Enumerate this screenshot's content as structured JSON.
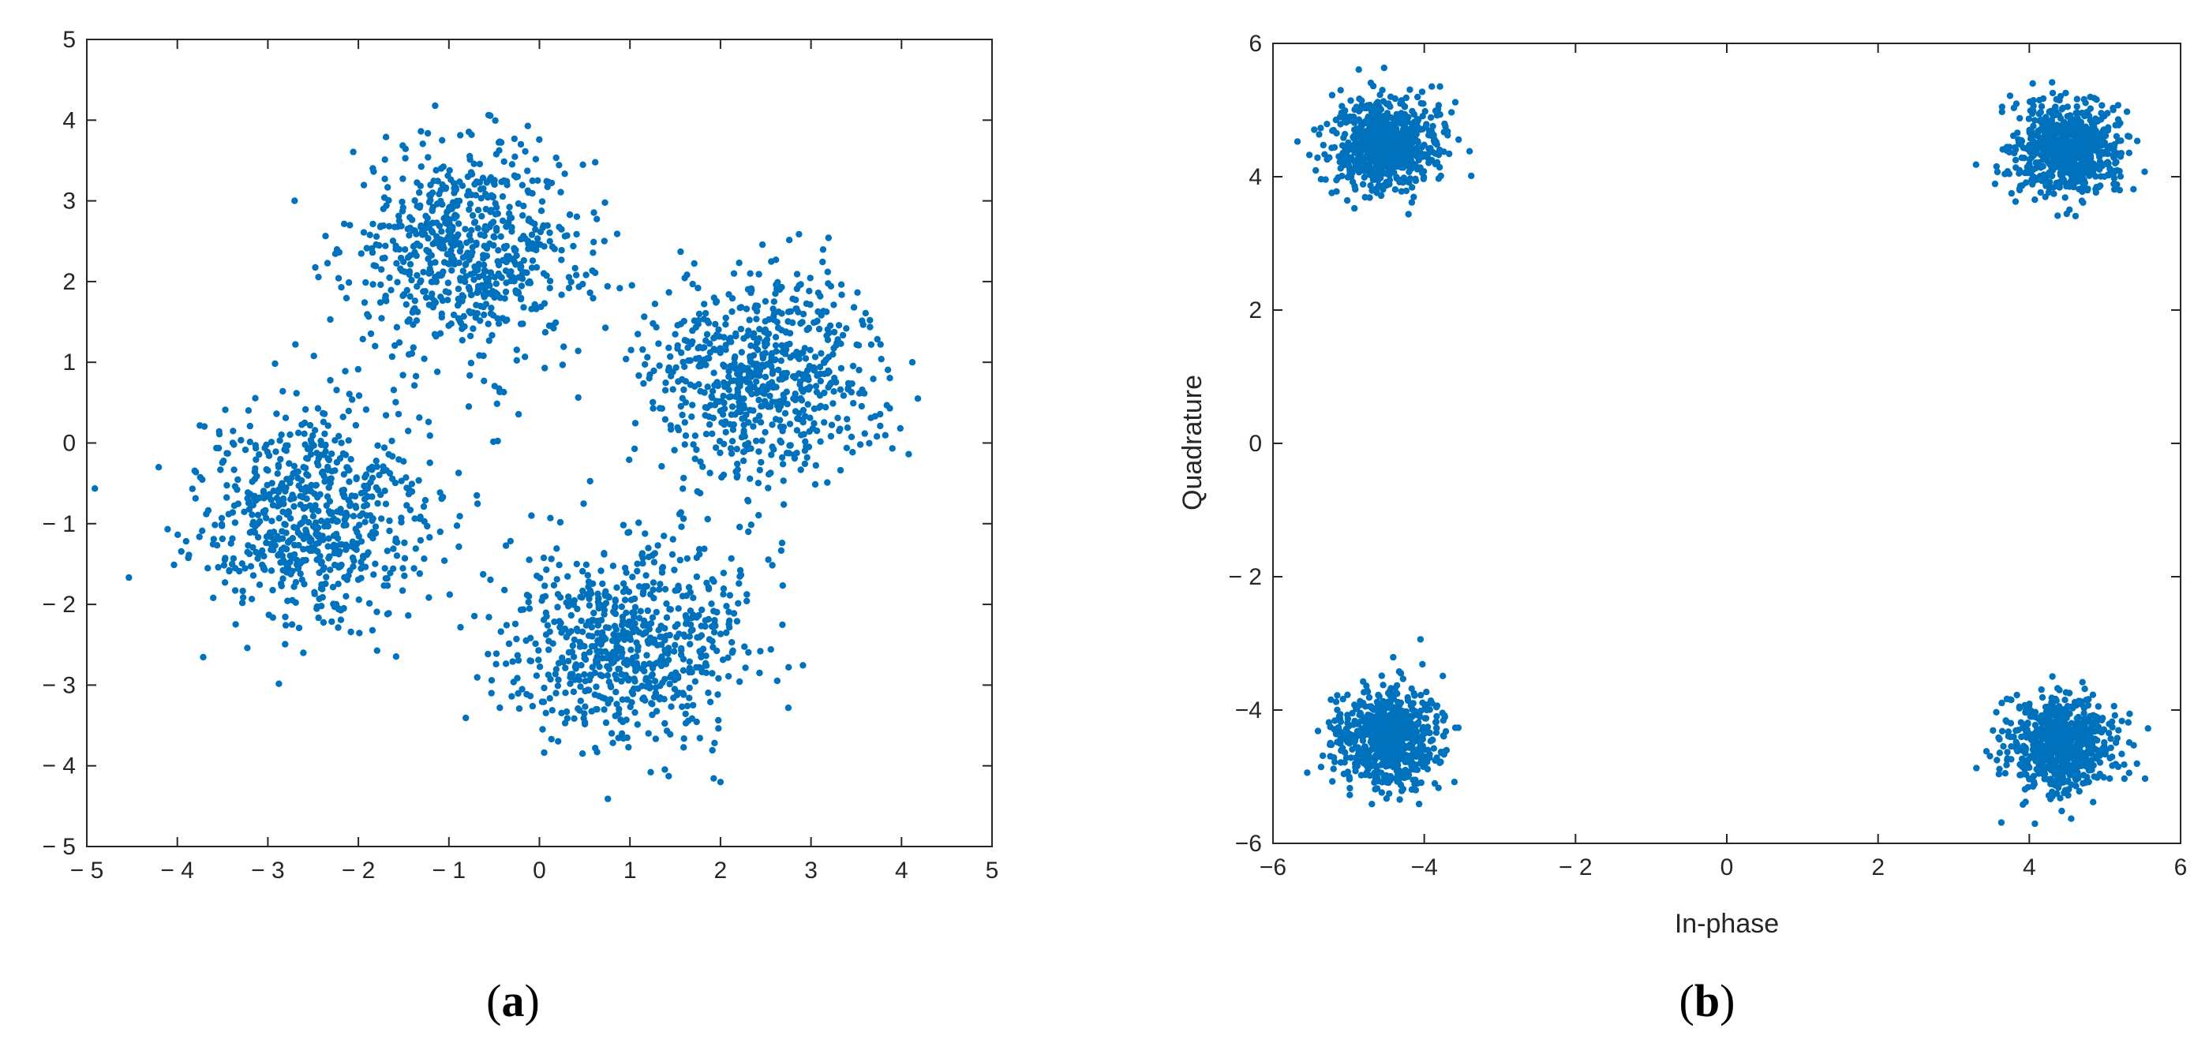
{
  "chart_data": [
    {
      "type": "scatter",
      "panel_label": {
        "open": "(",
        "letter": "a",
        "close": ")"
      },
      "title": "",
      "xlabel": "",
      "ylabel": "",
      "xlim": [
        -5,
        5
      ],
      "ylim": [
        -5,
        5
      ],
      "xticks": [
        -5,
        -4,
        -3,
        -2,
        -1,
        0,
        1,
        2,
        3,
        4,
        5
      ],
      "yticks": [
        -5,
        -4,
        -3,
        -2,
        -1,
        0,
        1,
        2,
        3,
        4,
        5
      ],
      "xtick_labels": [
        "− 5",
        "− 4",
        "− 3",
        "− 2",
        "− 1",
        "0",
        "1",
        "2",
        "3",
        "4",
        "5"
      ],
      "ytick_labels": [
        "− 5",
        "− 4",
        "− 3",
        "− 2",
        "− 1",
        "0",
        "1",
        "2",
        "3",
        "4",
        "5"
      ],
      "grid": false,
      "marker_color": "#0072BD",
      "clusters": [
        {
          "center": [
            -0.8,
            2.4
          ],
          "spread": 0.65,
          "count": 700
        },
        {
          "center": [
            2.5,
            0.85
          ],
          "spread": 0.65,
          "count": 700
        },
        {
          "center": [
            -2.5,
            -0.9
          ],
          "spread": 0.65,
          "count": 700
        },
        {
          "center": [
            1.0,
            -2.5
          ],
          "spread": 0.65,
          "count": 700
        }
      ]
    },
    {
      "type": "scatter",
      "panel_label": {
        "open": "(",
        "letter": "b",
        "close": ")"
      },
      "title": "",
      "xlabel": "In-phase",
      "ylabel": "Quadrature",
      "xlim": [
        -6,
        6
      ],
      "ylim": [
        -6,
        6
      ],
      "xticks": [
        -6,
        -4,
        -2,
        0,
        2,
        4,
        6
      ],
      "yticks": [
        -6,
        -4,
        -2,
        0,
        2,
        4,
        6
      ],
      "xtick_labels": [
        "−6",
        "−4",
        "− 2",
        "0",
        "2",
        "4",
        "6"
      ],
      "ytick_labels": [
        "−6",
        "−4",
        "− 2",
        "0",
        "2",
        "4",
        "6"
      ],
      "grid": false,
      "marker_color": "#0072BD",
      "clusters": [
        {
          "center": [
            -4.5,
            4.5
          ],
          "spread": 0.35,
          "count": 700
        },
        {
          "center": [
            4.5,
            4.4
          ],
          "spread": 0.35,
          "count": 700
        },
        {
          "center": [
            -4.5,
            -4.4
          ],
          "spread": 0.35,
          "count": 700
        },
        {
          "center": [
            4.4,
            -4.5
          ],
          "spread": 0.35,
          "count": 700
        }
      ]
    }
  ]
}
